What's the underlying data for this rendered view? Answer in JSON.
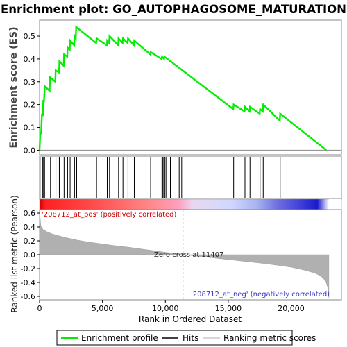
{
  "chart_data": {
    "type": "line",
    "title": "Enrichment plot: GO_AUTOPHAGOSOME_MATURATION",
    "xlabel": "Rank in Ordered Dataset",
    "xlim": [
      0,
      24000
    ],
    "x_ticks": [
      0,
      5000,
      10000,
      15000,
      20000
    ],
    "x_tick_labels": [
      "0",
      "5,000",
      "10,000",
      "15,000",
      "20,000"
    ],
    "n_genes": 23000,
    "es_panel": {
      "ylabel": "Enrichment score (ES)",
      "ylim": [
        -0.02,
        0.57
      ],
      "y_ticks": [
        0.0,
        0.1,
        0.2,
        0.3,
        0.4,
        0.5
      ],
      "y_tick_labels": [
        "0.0",
        "0.1",
        "0.2",
        "0.3",
        "0.4",
        "0.5"
      ],
      "color": "#00ff00",
      "series": [
        {
          "name": "Enrichment profile",
          "x": [
            0,
            60,
            120,
            180,
            200,
            260,
            300,
            350,
            400,
            420,
            800,
            830,
            1250,
            1280,
            1550,
            1580,
            1920,
            1950,
            2200,
            2230,
            2400,
            2430,
            2750,
            2780,
            2880,
            2910,
            4500,
            4530,
            5350,
            5380,
            5530,
            5560,
            6250,
            6280,
            6600,
            6630,
            7000,
            7030,
            7500,
            7530,
            8800,
            8830,
            9700,
            9730,
            9900,
            9930,
            15400,
            15430,
            16300,
            16330,
            16700,
            16730,
            17500,
            17530,
            17750,
            17780,
            19100,
            19130,
            22800
          ],
          "y": [
            0.0,
            0.08,
            0.07,
            0.15,
            0.16,
            0.15,
            0.22,
            0.21,
            0.27,
            0.28,
            0.26,
            0.32,
            0.3,
            0.35,
            0.34,
            0.39,
            0.37,
            0.42,
            0.41,
            0.45,
            0.44,
            0.48,
            0.46,
            0.5,
            0.49,
            0.54,
            0.47,
            0.49,
            0.46,
            0.48,
            0.47,
            0.5,
            0.46,
            0.49,
            0.47,
            0.49,
            0.47,
            0.49,
            0.46,
            0.48,
            0.42,
            0.43,
            0.4,
            0.41,
            0.4,
            0.41,
            0.18,
            0.2,
            0.17,
            0.19,
            0.17,
            0.19,
            0.16,
            0.18,
            0.17,
            0.2,
            0.13,
            0.16,
            0.0
          ]
        }
      ]
    },
    "hits": [
      40,
      200,
      260,
      330,
      400,
      870,
      1300,
      1570,
      1950,
      2230,
      2430,
      2780,
      2910,
      2950,
      4530,
      5380,
      5560,
      6280,
      6630,
      7030,
      7530,
      8830,
      9730,
      9800,
      9880,
      9950,
      10050,
      10400,
      11100,
      11300,
      15430,
      15530,
      16330,
      16730,
      17530,
      17780,
      19130
    ],
    "metric_panel": {
      "ylabel": "Ranked list metric (Pearson)",
      "ylim": [
        -0.65,
        0.65
      ],
      "y_ticks": [
        -0.6,
        -0.4,
        -0.2,
        0.0,
        0.2,
        0.4,
        0.6
      ],
      "y_tick_labels": [
        "-0.6",
        "-0.4",
        "-0.2",
        "0.0",
        "0.2",
        "0.4",
        "0.6"
      ],
      "fill_color": "#b0b0b0",
      "x": [
        0,
        100,
        300,
        600,
        1000,
        2000,
        3000,
        4000,
        5000,
        6000,
        7000,
        8000,
        9000,
        10000,
        11407,
        12000,
        13000,
        14000,
        15000,
        16000,
        17000,
        18000,
        19000,
        20000,
        21000,
        21800,
        22300,
        22600,
        22800,
        22950,
        23000
      ],
      "y": [
        0.65,
        0.42,
        0.36,
        0.33,
        0.3,
        0.25,
        0.21,
        0.18,
        0.155,
        0.13,
        0.11,
        0.085,
        0.06,
        0.035,
        0.0,
        -0.01,
        -0.03,
        -0.05,
        -0.07,
        -0.09,
        -0.11,
        -0.13,
        -0.155,
        -0.18,
        -0.22,
        -0.26,
        -0.3,
        -0.35,
        -0.41,
        -0.5,
        -0.62
      ]
    },
    "annotations": {
      "pos_label": "'208712_at_pos' (positively correlated)",
      "neg_label": "'208712_at_neg' (negatively correlated)",
      "zero_cross_label": "Zero cross at 11407",
      "zero_cross_x": 11407
    },
    "legend": {
      "placement": "bottom",
      "entries": [
        {
          "label": "Enrichment profile",
          "color": "#00ff00",
          "kind": "line"
        },
        {
          "label": "Hits",
          "color": "#000000",
          "kind": "line"
        },
        {
          "label": "Ranking metric scores",
          "color": "#c8c8c8",
          "kind": "line"
        }
      ]
    },
    "gradient_colors": {
      "stops": [
        0.0,
        0.02,
        0.2,
        0.38,
        0.48,
        0.53,
        0.66,
        0.75,
        0.82,
        0.9,
        0.96,
        1.0
      ],
      "colors": [
        "#cc0000",
        "#ff2020",
        "#ff5050",
        "#ff8888",
        "#ff9fbf",
        "#e8d8f0",
        "#d0d8ff",
        "#aab4f0",
        "#7070e0",
        "#4040d8",
        "#1a1acc",
        "#ffffff"
      ]
    }
  }
}
